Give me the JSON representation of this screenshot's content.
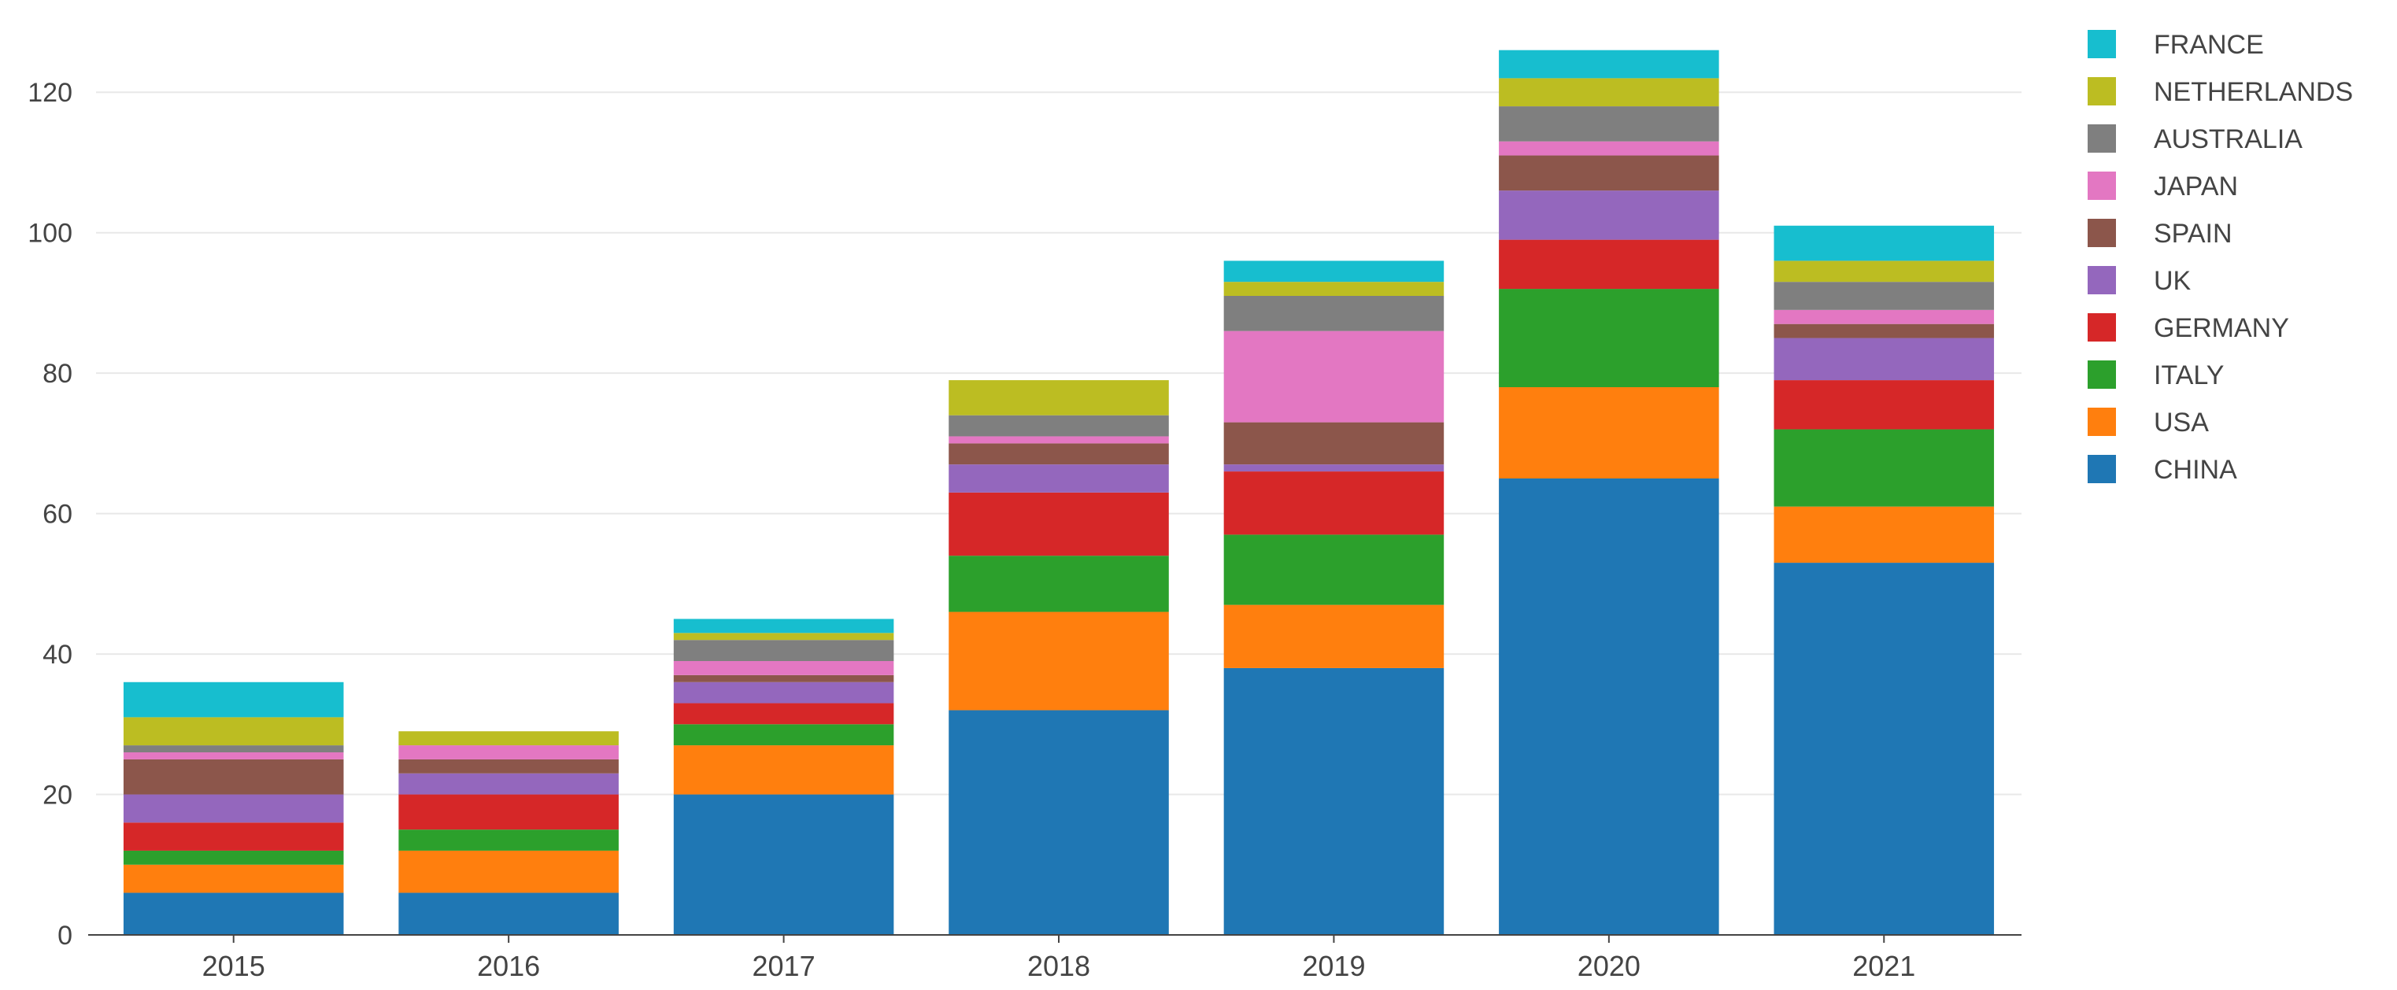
{
  "chart_data": {
    "type": "bar",
    "stacked": true,
    "title": "",
    "xlabel": "",
    "ylabel": "",
    "ylim": [
      0,
      130
    ],
    "yticks": [
      0,
      20,
      40,
      60,
      80,
      100,
      120
    ],
    "grid": true,
    "legend_position": "top-right",
    "categories": [
      "2015",
      "2016",
      "2017",
      "2018",
      "2019",
      "2020",
      "2021"
    ],
    "series": [
      {
        "name": "CHINA",
        "color": "#1f77b4",
        "values": [
          6,
          6,
          20,
          32,
          38,
          65,
          53
        ]
      },
      {
        "name": "USA",
        "color": "#ff7f0e",
        "values": [
          4,
          6,
          7,
          14,
          9,
          13,
          8
        ]
      },
      {
        "name": "ITALY",
        "color": "#2ca02c",
        "values": [
          2,
          3,
          3,
          8,
          10,
          14,
          11
        ]
      },
      {
        "name": "GERMANY",
        "color": "#d62728",
        "values": [
          4,
          5,
          3,
          9,
          9,
          7,
          7
        ]
      },
      {
        "name": "UK",
        "color": "#9467bd",
        "values": [
          4,
          3,
          3,
          4,
          1,
          7,
          6
        ]
      },
      {
        "name": "SPAIN",
        "color": "#8c564b",
        "values": [
          5,
          2,
          1,
          3,
          6,
          5,
          2
        ]
      },
      {
        "name": "JAPAN",
        "color": "#e377c2",
        "values": [
          1,
          2,
          2,
          1,
          13,
          2,
          2
        ]
      },
      {
        "name": "AUSTRALIA",
        "color": "#7f7f7f",
        "values": [
          1,
          0,
          3,
          3,
          5,
          5,
          4
        ]
      },
      {
        "name": "NETHERLANDS",
        "color": "#bcbd22",
        "values": [
          4,
          2,
          1,
          5,
          2,
          4,
          3
        ]
      },
      {
        "name": "FRANCE",
        "color": "#17becf",
        "values": [
          5,
          0,
          2,
          0,
          3,
          4,
          5
        ]
      }
    ]
  }
}
